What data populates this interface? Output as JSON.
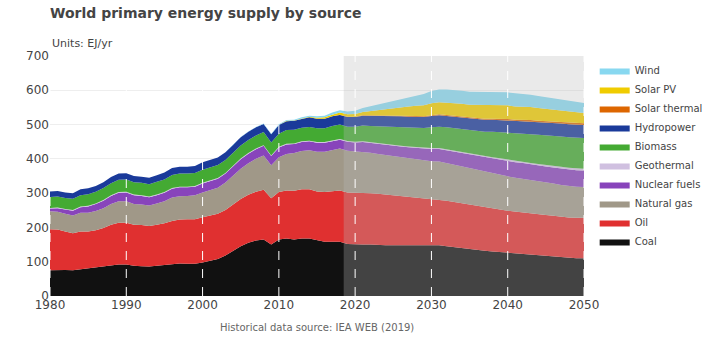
{
  "chart_data": {
    "type": "area",
    "stacked": true,
    "title": "World primary energy supply by source",
    "subtitle": "Units: EJ/yr",
    "annotations": [
      "Historical data source: IEA WEB (2019)"
    ],
    "x": [
      1980,
      1981,
      1982,
      1983,
      1984,
      1985,
      1986,
      1987,
      1988,
      1989,
      1990,
      1991,
      1992,
      1993,
      1994,
      1995,
      1996,
      1997,
      1998,
      1999,
      2000,
      2001,
      2002,
      2003,
      2004,
      2005,
      2006,
      2007,
      2008,
      2009,
      2010,
      2011,
      2012,
      2013,
      2014,
      2015,
      2016,
      2017,
      2018,
      2019,
      2020,
      2021,
      2022,
      2023,
      2024,
      2025,
      2026,
      2027,
      2028,
      2029,
      2030,
      2031,
      2032,
      2033,
      2034,
      2035,
      2036,
      2037,
      2038,
      2039,
      2040,
      2041,
      2042,
      2043,
      2044,
      2045,
      2046,
      2047,
      2048,
      2049,
      2050
    ],
    "series": [
      {
        "name": "Coal",
        "color": "#111111",
        "values": [
          75,
          76,
          76,
          75,
          78,
          80,
          82,
          86,
          90,
          92,
          92,
          88,
          87,
          86,
          88,
          90,
          94,
          95,
          94,
          94,
          98,
          102,
          108,
          118,
          132,
          145,
          155,
          162,
          165,
          150,
          165,
          168,
          165,
          168,
          168,
          162,
          158,
          158,
          158,
          152,
          150,
          150,
          150,
          148,
          148,
          148,
          148,
          148,
          148,
          148,
          148,
          148,
          145,
          142,
          140,
          138,
          135,
          132,
          130,
          128,
          126,
          124,
          122,
          120,
          118,
          116,
          114,
          112,
          111,
          110,
          110
        ]
      },
      {
        "name": "Oil",
        "color": "#e03030",
        "values": [
          120,
          118,
          112,
          108,
          110,
          108,
          110,
          112,
          118,
          122,
          122,
          120,
          120,
          118,
          120,
          122,
          125,
          128,
          130,
          130,
          132,
          132,
          132,
          133,
          135,
          138,
          140,
          142,
          145,
          135,
          138,
          140,
          142,
          143,
          143,
          143,
          145,
          148,
          150,
          150,
          152,
          152,
          150,
          150,
          148,
          145,
          142,
          140,
          138,
          136,
          135,
          134,
          133,
          132,
          130,
          128,
          127,
          126,
          125,
          124,
          123,
          122,
          122,
          121,
          120,
          120,
          120,
          119,
          118,
          118,
          118
        ]
      },
      {
        "name": "Natural gas",
        "color": "#a09888",
        "values": [
          52,
          52,
          52,
          52,
          55,
          55,
          56,
          58,
          60,
          62,
          62,
          60,
          60,
          60,
          62,
          64,
          68,
          68,
          68,
          70,
          72,
          74,
          76,
          80,
          84,
          88,
          92,
          96,
          100,
          96,
          102,
          106,
          110,
          112,
          114,
          116,
          118,
          120,
          122,
          122,
          120,
          120,
          118,
          116,
          115,
          115,
          114,
          113,
          112,
          111,
          110,
          110,
          109,
          108,
          107,
          106,
          105,
          104,
          103,
          102,
          100,
          99,
          98,
          97,
          96,
          95,
          94,
          93,
          92,
          91,
          90
        ]
      },
      {
        "name": "Nuclear fuels",
        "color": "#8844bb",
        "values": [
          8,
          10,
          12,
          14,
          16,
          18,
          20,
          22,
          24,
          25,
          26,
          26,
          25,
          24,
          24,
          25,
          26,
          26,
          25,
          25,
          26,
          26,
          26,
          26,
          27,
          28,
          28,
          28,
          28,
          27,
          28,
          28,
          26,
          26,
          26,
          26,
          26,
          26,
          26,
          26,
          26,
          27,
          28,
          29,
          30,
          31,
          32,
          33,
          34,
          35,
          36,
          37,
          38,
          39,
          40,
          40,
          41,
          42,
          43,
          44,
          45,
          45,
          46,
          46,
          47,
          47,
          47,
          48,
          48,
          48,
          48
        ]
      },
      {
        "name": "Geothermal",
        "color": "#d0c0e0",
        "values": [
          2,
          2,
          2,
          2,
          2,
          2,
          2,
          2,
          2,
          2,
          2,
          2,
          2,
          2,
          2,
          2,
          2,
          2,
          2,
          2,
          2,
          2,
          2,
          2,
          2,
          2,
          2,
          2,
          2,
          2,
          2,
          2,
          2,
          2,
          2,
          2,
          2,
          2,
          2,
          2,
          2,
          2,
          2,
          2,
          2,
          2,
          2,
          2,
          2,
          2,
          3,
          3,
          3,
          3,
          3,
          3,
          3,
          3,
          4,
          4,
          4,
          4,
          4,
          4,
          4,
          5,
          5,
          5,
          5,
          5,
          5
        ]
      },
      {
        "name": "Biomass",
        "color": "#44aa33",
        "values": [
          32,
          32,
          32,
          33,
          33,
          34,
          34,
          35,
          35,
          36,
          36,
          36,
          36,
          36,
          37,
          37,
          38,
          38,
          38,
          38,
          38,
          38,
          38,
          38,
          38,
          38,
          38,
          38,
          38,
          38,
          38,
          40,
          40,
          40,
          40,
          40,
          40,
          42,
          42,
          42,
          44,
          46,
          48,
          50,
          52,
          54,
          55,
          56,
          57,
          58,
          60,
          62,
          64,
          65,
          66,
          68,
          70,
          72,
          74,
          76,
          78,
          80,
          82,
          84,
          85,
          86,
          87,
          88,
          89,
          90,
          90
        ]
      },
      {
        "name": "Hydropower",
        "color": "#1a3a9a",
        "values": [
          16,
          16,
          16,
          16,
          17,
          17,
          17,
          17,
          18,
          18,
          18,
          18,
          18,
          19,
          19,
          20,
          20,
          20,
          20,
          20,
          22,
          22,
          22,
          22,
          22,
          24,
          24,
          24,
          24,
          24,
          26,
          26,
          26,
          26,
          28,
          28,
          28,
          28,
          28,
          28,
          28,
          29,
          30,
          30,
          30,
          30,
          31,
          31,
          32,
          32,
          33,
          33,
          33,
          34,
          34,
          34,
          35,
          35,
          35,
          35,
          36,
          36,
          36,
          37,
          37,
          37,
          37,
          38,
          38,
          38,
          38
        ]
      },
      {
        "name": "Solar thermal",
        "color": "#dd6600",
        "values": [
          0,
          0,
          0,
          0,
          0,
          0,
          0,
          0,
          0,
          0,
          0,
          0,
          0,
          0,
          0,
          0,
          0,
          0,
          0,
          0,
          0,
          0,
          0,
          0,
          0,
          0,
          0,
          0,
          0,
          0,
          0,
          0,
          0,
          0,
          0,
          0,
          0,
          0,
          1,
          1,
          1,
          1,
          1,
          2,
          2,
          2,
          2,
          2,
          2,
          2,
          3,
          3,
          3,
          3,
          3,
          3,
          3,
          3,
          3,
          4,
          4,
          4,
          4,
          4,
          4,
          4,
          4,
          4,
          5,
          5,
          5
        ]
      },
      {
        "name": "Solar PV",
        "color": "#f0cc00",
        "values": [
          0,
          0,
          0,
          0,
          0,
          0,
          0,
          0,
          0,
          0,
          0,
          0,
          0,
          0,
          0,
          0,
          0,
          0,
          0,
          0,
          0,
          0,
          0,
          0,
          0,
          0,
          0,
          0,
          0,
          0,
          0,
          1,
          1,
          1,
          2,
          3,
          4,
          5,
          6,
          7,
          8,
          10,
          13,
          16,
          19,
          22,
          25,
          28,
          30,
          32,
          34,
          35,
          36,
          37,
          38,
          38,
          39,
          40,
          40,
          40,
          40,
          39,
          39,
          38,
          37,
          36,
          35,
          34,
          33,
          32,
          30
        ]
      },
      {
        "name": "Wind",
        "color": "#88d8f0",
        "values": [
          0,
          0,
          0,
          0,
          0,
          0,
          0,
          0,
          0,
          0,
          0,
          0,
          0,
          0,
          0,
          0,
          0,
          0,
          0,
          0,
          0,
          0,
          0,
          0,
          0,
          1,
          1,
          1,
          1,
          1,
          2,
          2,
          2,
          3,
          3,
          4,
          5,
          6,
          7,
          8,
          9,
          11,
          13,
          16,
          18,
          21,
          24,
          27,
          30,
          33,
          36,
          37,
          38,
          38,
          38,
          38,
          38,
          38,
          38,
          38,
          38,
          38,
          37,
          36,
          35,
          34,
          33,
          32,
          31,
          30,
          29
        ]
      }
    ],
    "xlim": [
      1980,
      2050
    ],
    "xticks": [
      1980,
      1990,
      2000,
      2010,
      2020,
      2030,
      2040,
      2050
    ],
    "ylim": [
      0,
      700
    ],
    "yticks": [
      0,
      100,
      200,
      300,
      400,
      500,
      600,
      700
    ],
    "grid": true,
    "legend": "right",
    "shaded_from": 2018.5,
    "shade_color": "#b8b8b8"
  }
}
